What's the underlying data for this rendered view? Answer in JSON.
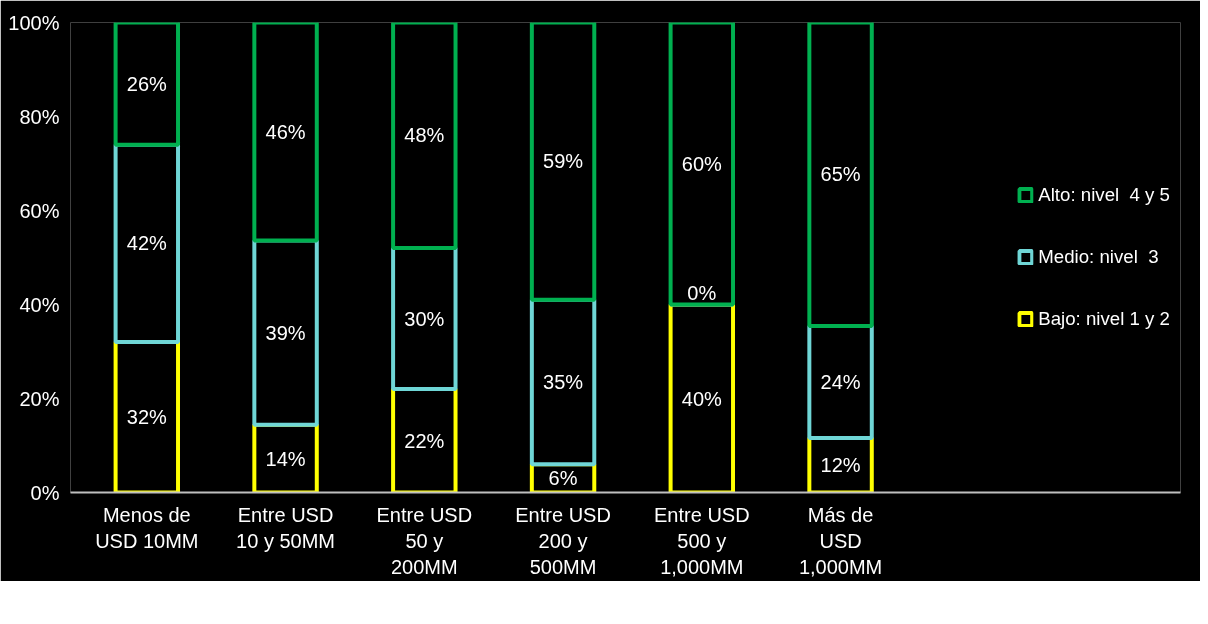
{
  "chart_data": {
    "type": "bar",
    "stacked": true,
    "categories": [
      "Menos de USD 10MM",
      "Entre USD 10 y 50MM",
      "Entre USD 50 y 200MM",
      "Entre USD 200 y 500MM",
      "Entre USD 500 y 1,000MM",
      "Más de USD 1,000MM"
    ],
    "series": [
      {
        "name": "Bajo: nivel 1 y 2",
        "color": "#ffff00",
        "values": [
          32,
          14.4,
          22,
          6,
          40,
          11.6
        ],
        "value_labels": [
          "32%",
          "14%",
          "22%",
          "6%",
          "40%",
          "12%"
        ]
      },
      {
        "name": "Medio: nivel  3",
        "color": "#6fd6d6",
        "values": [
          42,
          39.2,
          30,
          35,
          0,
          23.8
        ],
        "value_labels": [
          "42%",
          "39%",
          "30%",
          "35%",
          "0%",
          "24%"
        ]
      },
      {
        "name": "Alto: nivel  4 y 5",
        "color": "#00b050",
        "values": [
          26,
          46.4,
          48,
          59,
          60,
          64.6
        ],
        "value_labels": [
          "26%",
          "46%",
          "48%",
          "59%",
          "60%",
          "65%"
        ]
      }
    ],
    "ylim": [
      0,
      100
    ],
    "yticks": [
      {
        "value": 0,
        "label": "0%"
      },
      {
        "value": 20,
        "label": "20%"
      },
      {
        "value": 40,
        "label": "40%"
      },
      {
        "value": 60,
        "label": "60%"
      },
      {
        "value": 80,
        "label": "80%"
      },
      {
        "value": 100,
        "label": "100%"
      }
    ],
    "grid": false,
    "legend": "right"
  }
}
